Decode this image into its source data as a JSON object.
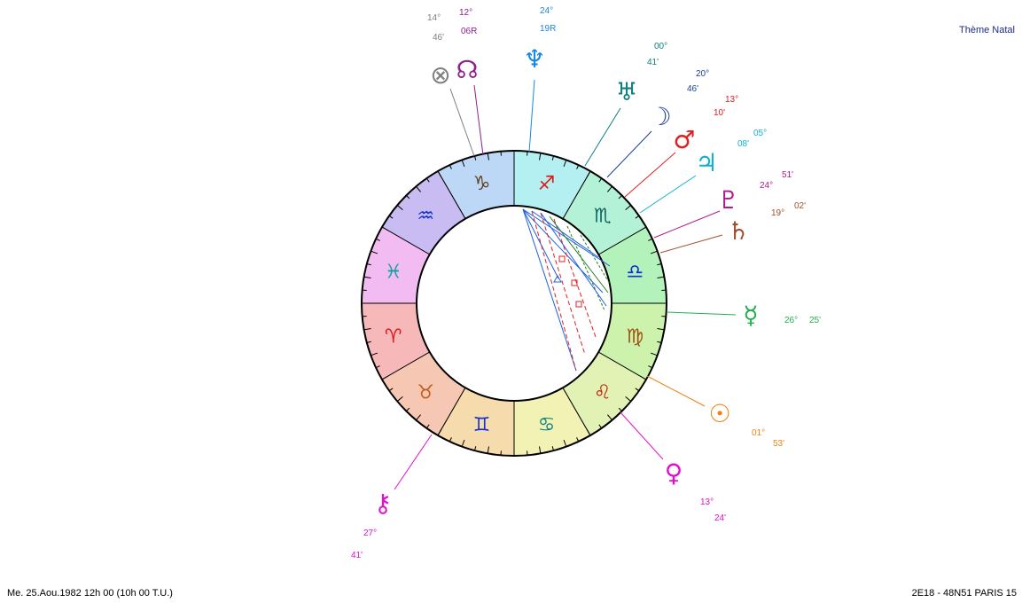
{
  "header": {
    "title": "Thème Natal"
  },
  "zodiac": [
    "♈",
    "♉",
    "♊",
    "♋",
    "♌",
    "♍",
    "♎",
    "♏",
    "♐",
    "♑",
    "♒",
    "♓"
  ],
  "planets": [
    {
      "glyph": "⊗",
      "degree": "14°",
      "minute": "46'"
    },
    {
      "glyph": "☊",
      "degree": "12°",
      "minute": "06R"
    },
    {
      "glyph": "♆",
      "degree": "24°",
      "minute": "19R"
    },
    {
      "glyph": "♅",
      "degree": "00°",
      "minute": "41'"
    },
    {
      "glyph": "☽",
      "degree": "20°",
      "minute": "46'"
    },
    {
      "glyph": "♂",
      "degree": "13°",
      "minute": "10'"
    },
    {
      "glyph": "♃",
      "degree": "05°",
      "minute": "08'"
    },
    {
      "glyph": "♇",
      "degree": "24°",
      "minute": "51'"
    },
    {
      "glyph": "♄",
      "degree": "19°",
      "minute": "02'"
    },
    {
      "glyph": "☿",
      "degree": "26°",
      "minute": "25'"
    },
    {
      "glyph": "☉",
      "degree": "01°",
      "minute": "53'"
    },
    {
      "glyph": "♀",
      "degree": "13°",
      "minute": "24'"
    },
    {
      "glyph": "⚷",
      "degree": "27°",
      "minute": "41'"
    }
  ],
  "footer": {
    "date": "Me. 25.Aou.1982 12h 00 (10h 00 T.U.)",
    "location": "2E18 - 48N51  PARIS 15"
  }
}
